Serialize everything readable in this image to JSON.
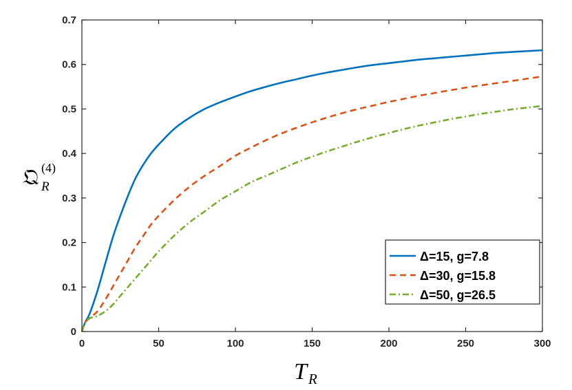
{
  "chart_data": {
    "type": "line",
    "xlabel": {
      "main": "T",
      "sub": "R"
    },
    "ylabel": {
      "main": "𝔔",
      "sub": "R",
      "sup": "(4)"
    },
    "xlim": [
      0,
      300
    ],
    "ylim": [
      0,
      0.7
    ],
    "xticks": [
      "0",
      "50",
      "100",
      "150",
      "200",
      "250",
      "300"
    ],
    "yticks": [
      "0",
      "0.1",
      "0.2",
      "0.3",
      "0.4",
      "0.5",
      "0.6",
      "0.7"
    ],
    "grid": false,
    "legend_position": "lower-right",
    "series": [
      {
        "name": "Δ=15, g=7.8",
        "color": "#0072BD",
        "style": "solid",
        "x": [
          0,
          2,
          5,
          10,
          15,
          20,
          25,
          30,
          35,
          40,
          45,
          50,
          60,
          70,
          80,
          90,
          100,
          110,
          120,
          130,
          140,
          150,
          160,
          170,
          180,
          190,
          200,
          210,
          220,
          230,
          240,
          250,
          260,
          270,
          280,
          290,
          300
        ],
        "y": [
          0,
          0.02,
          0.04,
          0.09,
          0.15,
          0.21,
          0.26,
          0.305,
          0.345,
          0.375,
          0.4,
          0.42,
          0.455,
          0.48,
          0.5,
          0.515,
          0.528,
          0.54,
          0.55,
          0.559,
          0.567,
          0.575,
          0.582,
          0.588,
          0.594,
          0.599,
          0.603,
          0.607,
          0.611,
          0.614,
          0.617,
          0.62,
          0.623,
          0.626,
          0.628,
          0.63,
          0.632
        ]
      },
      {
        "name": "Δ=30, g=15.8",
        "color": "#D95319",
        "style": "dashed",
        "x": [
          0,
          2,
          5,
          10,
          15,
          20,
          25,
          30,
          35,
          40,
          45,
          50,
          60,
          70,
          80,
          90,
          100,
          110,
          120,
          130,
          140,
          150,
          160,
          170,
          180,
          190,
          200,
          210,
          220,
          230,
          240,
          250,
          260,
          270,
          280,
          290,
          300
        ],
        "y": [
          0,
          0.02,
          0.03,
          0.045,
          0.07,
          0.1,
          0.13,
          0.16,
          0.19,
          0.215,
          0.24,
          0.26,
          0.295,
          0.325,
          0.35,
          0.372,
          0.395,
          0.413,
          0.43,
          0.445,
          0.458,
          0.47,
          0.481,
          0.491,
          0.5,
          0.508,
          0.516,
          0.523,
          0.53,
          0.536,
          0.542,
          0.548,
          0.553,
          0.558,
          0.563,
          0.568,
          0.573
        ]
      },
      {
        "name": "Δ=50, g=26.5",
        "color": "#77AC30",
        "style": "dashdot",
        "x": [
          0,
          2,
          5,
          10,
          15,
          20,
          25,
          30,
          35,
          40,
          45,
          50,
          60,
          70,
          80,
          90,
          100,
          110,
          120,
          130,
          140,
          150,
          160,
          170,
          180,
          190,
          200,
          210,
          220,
          230,
          240,
          250,
          260,
          270,
          280,
          290,
          300
        ],
        "y": [
          0,
          0.02,
          0.03,
          0.035,
          0.045,
          0.06,
          0.08,
          0.1,
          0.12,
          0.14,
          0.16,
          0.18,
          0.215,
          0.245,
          0.27,
          0.295,
          0.315,
          0.335,
          0.35,
          0.365,
          0.38,
          0.393,
          0.405,
          0.416,
          0.427,
          0.437,
          0.446,
          0.455,
          0.463,
          0.47,
          0.477,
          0.483,
          0.489,
          0.494,
          0.499,
          0.503,
          0.507
        ]
      }
    ]
  }
}
